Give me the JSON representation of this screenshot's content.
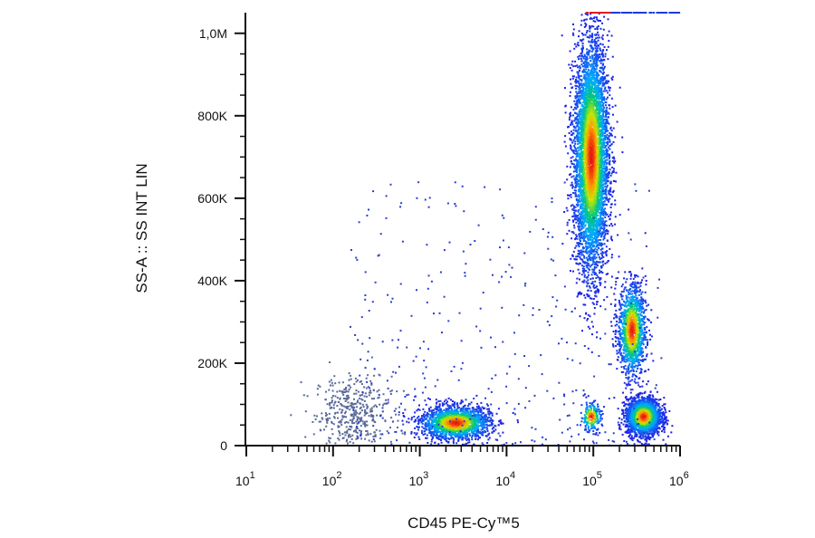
{
  "chart_data": {
    "type": "scatter",
    "title": "",
    "xlabel": "CD45 PE-Cy™5",
    "ylabel": "SS-A :: SS INT LIN",
    "x_scale": "log",
    "xlim": [
      10,
      1000000
    ],
    "ylim": [
      0,
      1050000
    ],
    "x_ticks": [
      {
        "value": 10,
        "base": "10",
        "exp": "1"
      },
      {
        "value": 100,
        "base": "10",
        "exp": "2"
      },
      {
        "value": 1000,
        "base": "10",
        "exp": "3"
      },
      {
        "value": 10000,
        "base": "10",
        "exp": "4"
      },
      {
        "value": 100000,
        "base": "10",
        "exp": "5"
      },
      {
        "value": 1000000,
        "base": "10",
        "exp": "6"
      }
    ],
    "y_ticks": [
      {
        "value": 0,
        "label": "0"
      },
      {
        "value": 200000,
        "label": "200K"
      },
      {
        "value": 400000,
        "label": "400K"
      },
      {
        "value": 600000,
        "label": "600K"
      },
      {
        "value": 800000,
        "label": "800K"
      },
      {
        "value": 1000000,
        "label": "1,0M"
      }
    ],
    "grid": false,
    "legend": "none",
    "colormap": "density (blue to red)",
    "populations": [
      {
        "x_center": 170,
        "y_center": 80000,
        "x_spread_decades": 0.22,
        "y_spread": 45000,
        "count": 420,
        "color": "#5a6a9a"
      },
      {
        "x_center": 2600,
        "y_center": 55000,
        "x_spread_decades": 0.2,
        "y_spread": 20000,
        "count": 1800,
        "color": "density"
      },
      {
        "x_center": 95000,
        "y_center": 700000,
        "x_spread_decades": 0.1,
        "y_spread": 140000,
        "count": 5200,
        "color": "density"
      },
      {
        "x_center": 280000,
        "y_center": 280000,
        "x_spread_decades": 0.08,
        "y_spread": 55000,
        "count": 1300,
        "color": "density"
      },
      {
        "x_center": 380000,
        "y_center": 70000,
        "x_spread_decades": 0.1,
        "y_spread": 22000,
        "count": 2200,
        "color": "density"
      },
      {
        "x_center": 95000,
        "y_center": 70000,
        "x_spread_decades": 0.06,
        "y_spread": 18000,
        "count": 220,
        "color": "density"
      }
    ],
    "saturated_band": {
      "x_from": 80000,
      "x_to": 1000000,
      "y": 1050000
    }
  }
}
